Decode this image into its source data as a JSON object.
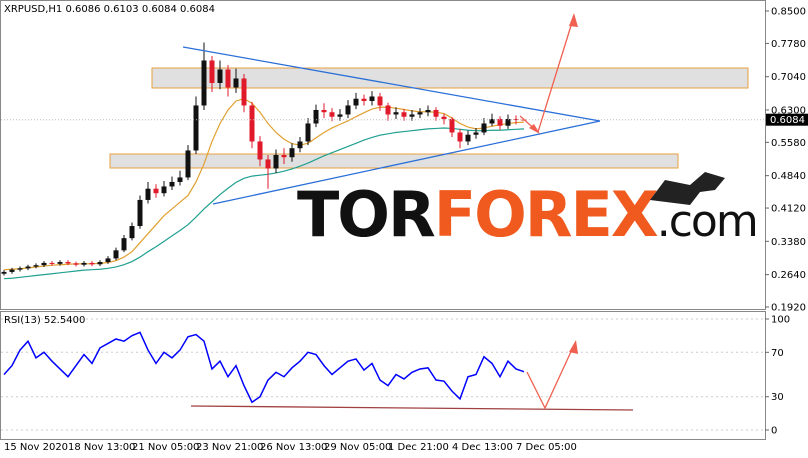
{
  "chart_data": [
    {
      "type": "candlestick",
      "title": "XRPUSD,H1",
      "categories": [
        "15 Nov 2020",
        null,
        null,
        null,
        null,
        null,
        null,
        null,
        "18 Nov 13:00",
        null,
        null,
        null,
        null,
        null,
        null,
        null,
        "21 Nov 05:00",
        null,
        null,
        null,
        null,
        null,
        null,
        null,
        "23 Nov 21:00",
        null,
        null,
        null,
        null,
        null,
        null,
        null,
        "26 Nov 13:00",
        null,
        null,
        null,
        null,
        null,
        null,
        null,
        "29 Nov 05:00",
        null,
        null,
        null,
        null,
        null,
        null,
        null,
        "1 Dec 21:00",
        null,
        null,
        null,
        null,
        null,
        null,
        null,
        "4 Dec 13:00",
        null,
        null,
        null,
        null,
        null,
        null,
        null,
        "7 Dec 05:00",
        null
      ],
      "open": [
        0.266,
        0.27,
        0.275,
        0.278,
        0.282,
        0.285,
        0.29,
        0.288,
        0.292,
        0.289,
        0.286,
        0.29,
        0.287,
        0.292,
        0.3,
        0.318,
        0.345,
        0.372,
        0.43,
        0.455,
        0.445,
        0.46,
        0.47,
        0.48,
        0.54,
        0.64,
        0.74,
        0.69,
        0.72,
        0.68,
        0.7,
        0.64,
        0.56,
        0.52,
        0.5,
        0.53,
        0.525,
        0.545,
        0.56,
        0.6,
        0.63,
        0.625,
        0.615,
        0.62,
        0.64,
        0.655,
        0.65,
        0.66,
        0.64,
        0.62,
        0.625,
        0.615,
        0.62,
        0.625,
        0.63,
        0.615,
        0.61,
        0.58,
        0.56,
        0.575,
        0.58,
        0.6,
        0.61,
        0.595,
        0.61,
        0.6086
      ],
      "high": [
        0.274,
        0.279,
        0.282,
        0.286,
        0.289,
        0.294,
        0.294,
        0.296,
        0.296,
        0.293,
        0.294,
        0.294,
        0.296,
        0.305,
        0.324,
        0.352,
        0.38,
        0.44,
        0.47,
        0.465,
        0.472,
        0.482,
        0.495,
        0.552,
        0.66,
        0.78,
        0.75,
        0.74,
        0.73,
        0.722,
        0.71,
        0.648,
        0.572,
        0.53,
        0.542,
        0.545,
        0.556,
        0.57,
        0.612,
        0.642,
        0.645,
        0.634,
        0.632,
        0.652,
        0.668,
        0.664,
        0.672,
        0.668,
        0.646,
        0.636,
        0.632,
        0.63,
        0.634,
        0.64,
        0.636,
        0.622,
        0.614,
        0.588,
        0.584,
        0.59,
        0.612,
        0.622,
        0.616,
        0.62,
        0.618,
        0.6103
      ],
      "low": [
        0.262,
        0.266,
        0.271,
        0.274,
        0.278,
        0.281,
        0.284,
        0.284,
        0.285,
        0.282,
        0.282,
        0.283,
        0.283,
        0.288,
        0.296,
        0.314,
        0.34,
        0.366,
        0.422,
        0.435,
        0.438,
        0.452,
        0.462,
        0.474,
        0.532,
        0.63,
        0.67,
        0.676,
        0.66,
        0.668,
        0.625,
        0.545,
        0.505,
        0.455,
        0.49,
        0.51,
        0.515,
        0.536,
        0.552,
        0.592,
        0.612,
        0.605,
        0.606,
        0.612,
        0.632,
        0.64,
        0.64,
        0.628,
        0.606,
        0.61,
        0.606,
        0.606,
        0.612,
        0.616,
        0.606,
        0.598,
        0.57,
        0.545,
        0.552,
        0.566,
        0.574,
        0.594,
        0.586,
        0.588,
        0.598,
        0.6084
      ],
      "close": [
        0.27,
        0.275,
        0.278,
        0.282,
        0.285,
        0.29,
        0.288,
        0.292,
        0.289,
        0.286,
        0.29,
        0.287,
        0.292,
        0.3,
        0.318,
        0.345,
        0.372,
        0.43,
        0.455,
        0.445,
        0.46,
        0.47,
        0.48,
        0.54,
        0.64,
        0.74,
        0.69,
        0.72,
        0.68,
        0.7,
        0.64,
        0.56,
        0.52,
        0.5,
        0.53,
        0.525,
        0.545,
        0.56,
        0.6,
        0.63,
        0.625,
        0.615,
        0.62,
        0.64,
        0.655,
        0.65,
        0.66,
        0.64,
        0.62,
        0.625,
        0.615,
        0.62,
        0.625,
        0.63,
        0.615,
        0.61,
        0.58,
        0.56,
        0.575,
        0.58,
        0.6,
        0.61,
        0.595,
        0.61,
        0.6086,
        0.6084
      ],
      "up_color": "#111111",
      "down_color": "#e0192b",
      "overlays": [
        {
          "color": "#e0a030",
          "values": [
            0.275,
            0.276,
            0.277,
            0.279,
            0.281,
            0.283,
            0.285,
            0.286,
            0.287,
            0.288,
            0.288,
            0.288,
            0.289,
            0.291,
            0.295,
            0.303,
            0.315,
            0.335,
            0.355,
            0.375,
            0.395,
            0.41,
            0.425,
            0.44,
            0.47,
            0.51,
            0.56,
            0.6,
            0.63,
            0.65,
            0.655,
            0.645,
            0.625,
            0.6,
            0.58,
            0.565,
            0.555,
            0.552,
            0.556,
            0.568,
            0.58,
            0.59,
            0.598,
            0.606,
            0.615,
            0.624,
            0.632,
            0.636,
            0.636,
            0.634,
            0.631,
            0.628,
            0.626,
            0.626,
            0.625,
            0.622,
            0.612,
            0.6,
            0.592,
            0.588,
            0.59,
            0.594,
            0.597,
            0.6,
            0.602,
            0.603
          ]
        },
        {
          "color": "#20a090",
          "values": [
            0.255,
            0.256,
            0.258,
            0.26,
            0.262,
            0.264,
            0.266,
            0.268,
            0.27,
            0.272,
            0.274,
            0.275,
            0.276,
            0.278,
            0.281,
            0.286,
            0.293,
            0.303,
            0.315,
            0.326,
            0.338,
            0.35,
            0.362,
            0.375,
            0.392,
            0.41,
            0.426,
            0.442,
            0.456,
            0.469,
            0.478,
            0.483,
            0.485,
            0.487,
            0.49,
            0.494,
            0.499,
            0.505,
            0.512,
            0.52,
            0.528,
            0.535,
            0.542,
            0.549,
            0.556,
            0.563,
            0.569,
            0.574,
            0.577,
            0.58,
            0.582,
            0.584,
            0.586,
            0.588,
            0.589,
            0.59,
            0.589,
            0.587,
            0.585,
            0.584,
            0.584,
            0.585,
            0.585,
            0.586,
            0.587,
            0.588
          ]
        }
      ],
      "ylim": [
        0.1898,
        0.8678
      ],
      "yticks": [
        {
          "value": 0.85,
          "label": "0.8500"
        },
        {
          "value": 0.778,
          "label": "0.7780"
        },
        {
          "value": 0.704,
          "label": "0.7040"
        },
        {
          "value": 0.63,
          "label": "0.6300"
        },
        {
          "value": 0.558,
          "label": "0.5580"
        },
        {
          "value": 0.484,
          "label": "0.4840"
        },
        {
          "value": 0.412,
          "label": "0.4120"
        },
        {
          "value": 0.338,
          "label": "0.3380"
        },
        {
          "value": 0.264,
          "label": "0.2640"
        },
        {
          "value": 0.192,
          "label": "0.1920"
        }
      ]
    },
    {
      "type": "line",
      "title": "RSI(13) 52.5400",
      "color": "#0000ff",
      "values": [
        50,
        58,
        72,
        80,
        65,
        70,
        62,
        55,
        48,
        58,
        68,
        60,
        74,
        78,
        82,
        80,
        85,
        88,
        72,
        60,
        70,
        65,
        72,
        84,
        86,
        80,
        55,
        62,
        48,
        58,
        40,
        25,
        30,
        45,
        52,
        48,
        56,
        62,
        70,
        68,
        58,
        50,
        56,
        62,
        64,
        54,
        60,
        45,
        40,
        50,
        46,
        52,
        55,
        56,
        45,
        44,
        35,
        28,
        48,
        50,
        66,
        60,
        48,
        62,
        55,
        52.54
      ],
      "ylim": [
        -9,
        105.4
      ],
      "yticks": [
        100,
        70,
        30,
        0
      ]
    }
  ],
  "watermark": [
    "TOR",
    "FOREX",
    ".com"
  ]
}
